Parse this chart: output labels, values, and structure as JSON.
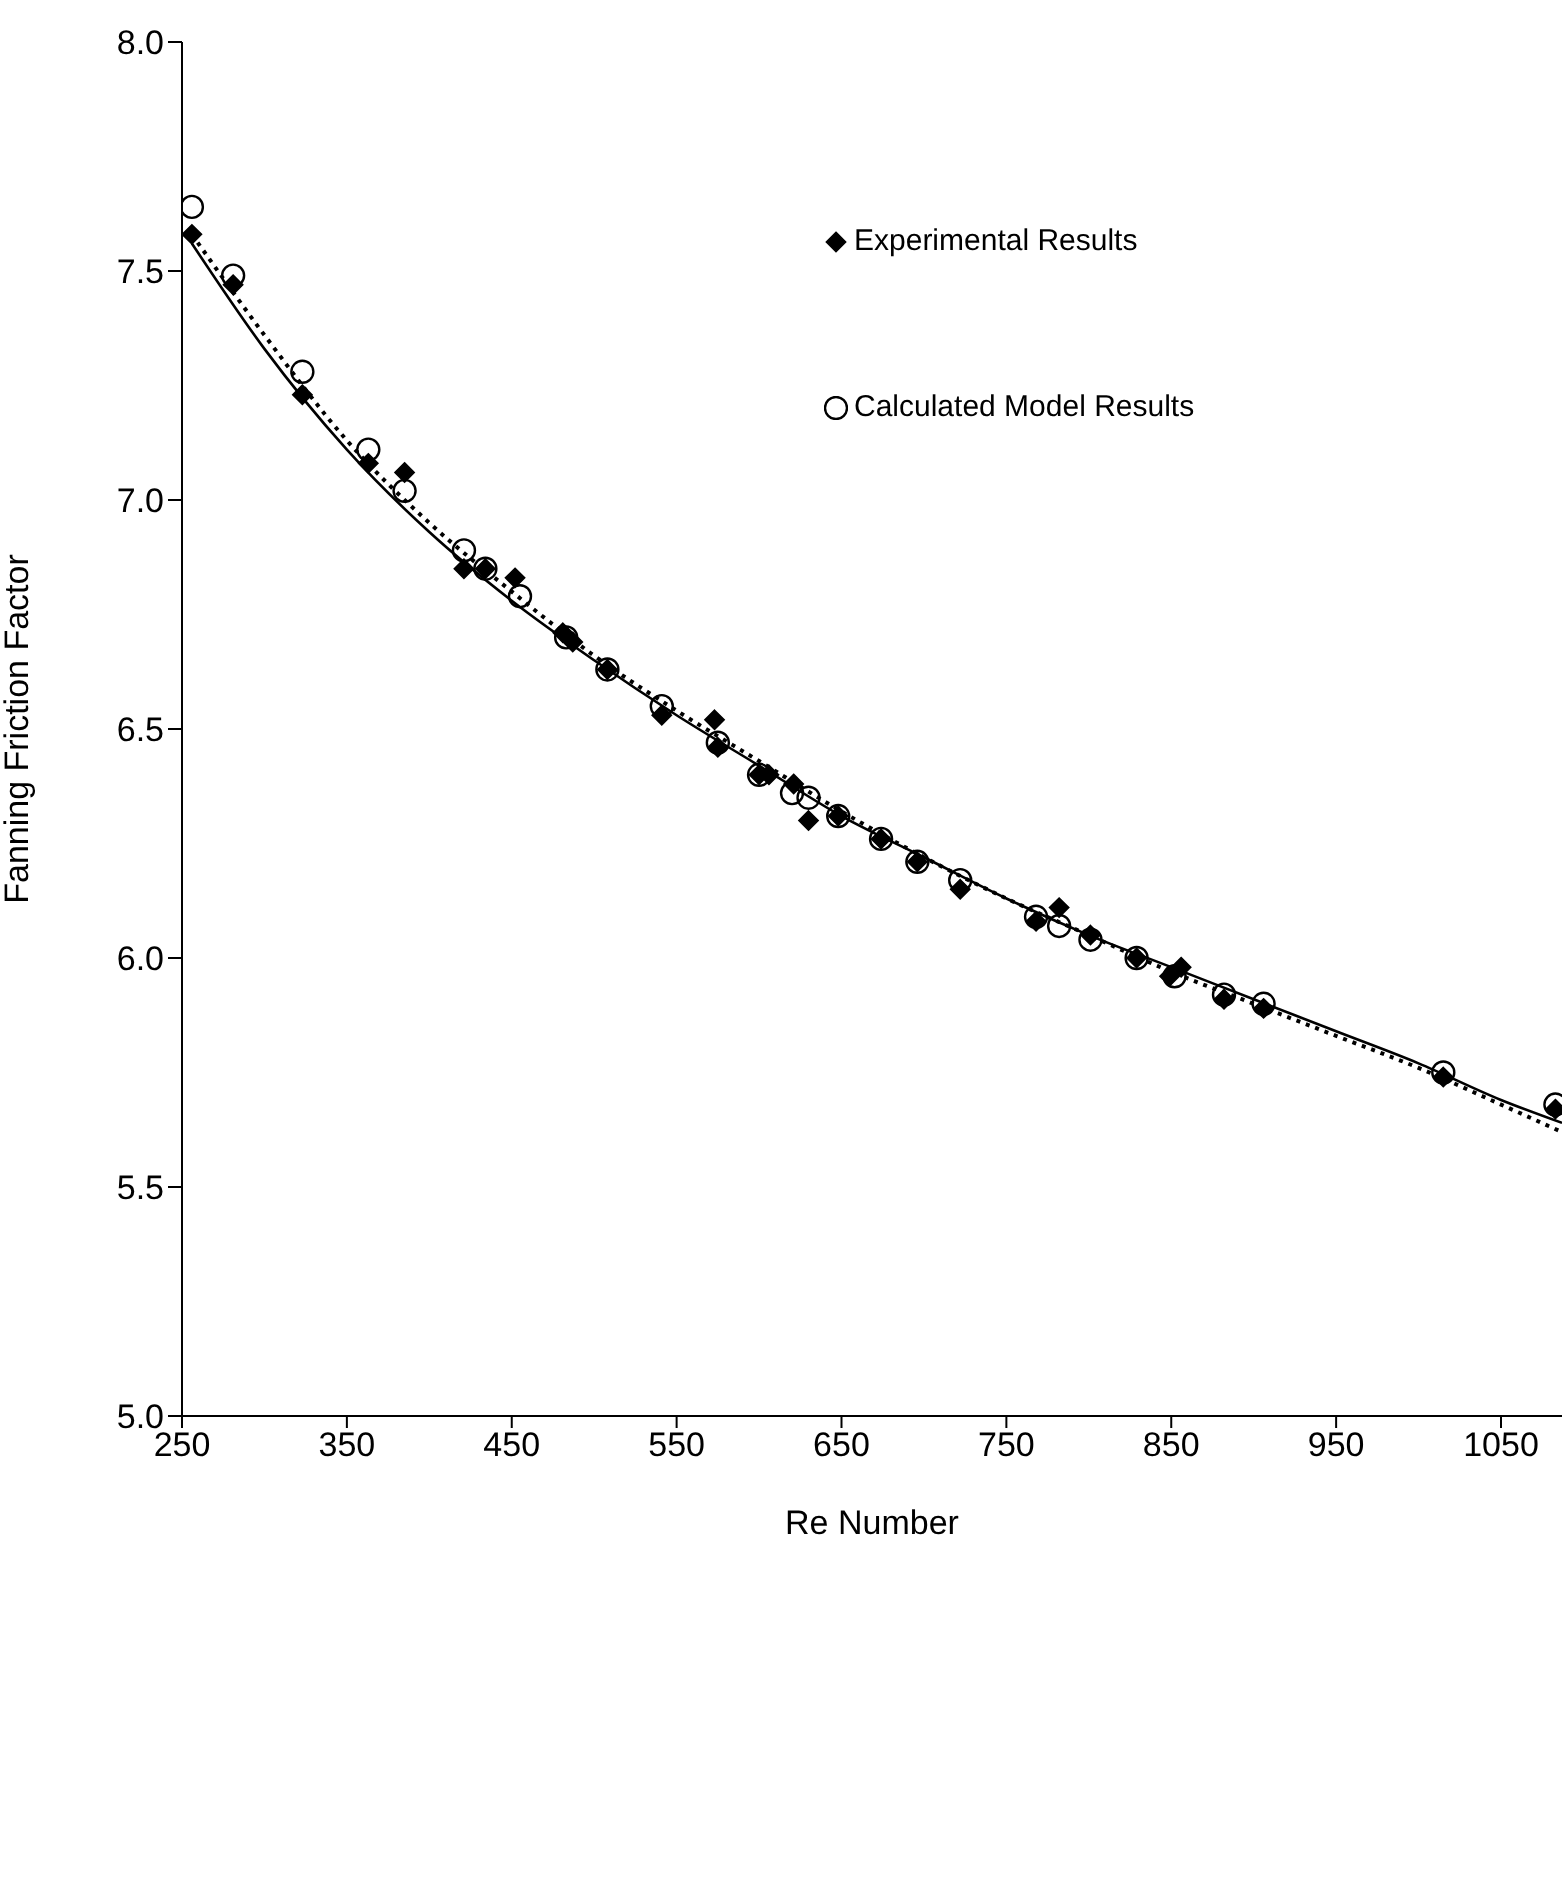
{
  "chart_data": {
    "type": "scatter",
    "xlabel": "Re Number",
    "ylabel": "Fanning Friction Factor",
    "xlim": [
      250,
      1087
    ],
    "xticks": [
      250,
      350,
      450,
      550,
      650,
      750,
      850,
      950,
      1050
    ],
    "ylim": [
      5.0,
      8.0
    ],
    "yticks": [
      {
        "value": 5.0,
        "label": "5.0"
      },
      {
        "value": 5.5,
        "label": "5.5"
      },
      {
        "value": 6.0,
        "label": "6.0"
      },
      {
        "value": 6.5,
        "label": "6.5"
      },
      {
        "value": 7.0,
        "label": "7.0"
      },
      {
        "value": 7.5,
        "label": "7.5"
      },
      {
        "value": 8.0,
        "label": "8.0"
      }
    ],
    "grid": false,
    "legend": "top right",
    "series": [
      {
        "name": "Experimental Results",
        "type": "scatter",
        "marker": "diamond",
        "color": "#000000",
        "x": [
          256,
          281,
          323,
          363,
          385,
          421,
          434,
          452,
          481,
          487,
          508,
          541,
          573,
          575,
          600,
          606,
          621,
          630,
          648,
          674,
          696,
          722,
          768,
          782,
          801,
          829,
          849,
          856,
          882,
          906,
          1015,
          1083
        ],
        "values": [
          7.58,
          7.47,
          7.23,
          7.08,
          7.06,
          6.85,
          6.85,
          6.83,
          6.71,
          6.69,
          6.63,
          6.53,
          6.52,
          6.46,
          6.4,
          6.4,
          6.38,
          6.3,
          6.31,
          6.26,
          6.21,
          6.15,
          6.08,
          6.11,
          6.05,
          6,
          5.96,
          5.98,
          5.91,
          5.89,
          5.74,
          5.67
        ]
      },
      {
        "name": "Calculated Model Results",
        "type": "scatter",
        "marker": "circle",
        "color": "#000000",
        "x": [
          256,
          281,
          323,
          363,
          385,
          421,
          434,
          455,
          483,
          508,
          541,
          575,
          600,
          620,
          630,
          648,
          674,
          696,
          722,
          768,
          782,
          801,
          829,
          852,
          882,
          906,
          1015,
          1083
        ],
        "values": [
          7.64,
          7.49,
          7.28,
          7.11,
          7.02,
          6.89,
          6.85,
          6.79,
          6.7,
          6.63,
          6.55,
          6.47,
          6.4,
          6.36,
          6.35,
          6.31,
          6.26,
          6.21,
          6.17,
          6.09,
          6.07,
          6.04,
          6,
          5.96,
          5.92,
          5.9,
          5.75,
          5.68
        ]
      },
      {
        "type": "line",
        "line_style": "solid",
        "marker": "none",
        "color": "#000000",
        "x": [
          256,
          300,
          350,
          400,
          450,
          500,
          550,
          600,
          650,
          700,
          750,
          800,
          850,
          900,
          950,
          1000,
          1050,
          1087
        ],
        "values": [
          7.56,
          7.33,
          7.11,
          6.93,
          6.78,
          6.65,
          6.53,
          6.42,
          6.31,
          6.22,
          6.13,
          6.05,
          5.98,
          5.91,
          5.84,
          5.77,
          5.69,
          5.64
        ]
      },
      {
        "type": "line",
        "line_style": "dotted",
        "marker": "none",
        "color": "#000000",
        "x": [
          256,
          300,
          350,
          400,
          450,
          500,
          550,
          600,
          650,
          700,
          750,
          800,
          850,
          900,
          950,
          1000,
          1050,
          1087
        ],
        "values": [
          7.58,
          7.36,
          7.13,
          6.95,
          6.8,
          6.66,
          6.54,
          6.43,
          6.32,
          6.22,
          6.13,
          6.05,
          5.97,
          5.9,
          5.83,
          5.76,
          5.68,
          5.62
        ]
      }
    ]
  }
}
